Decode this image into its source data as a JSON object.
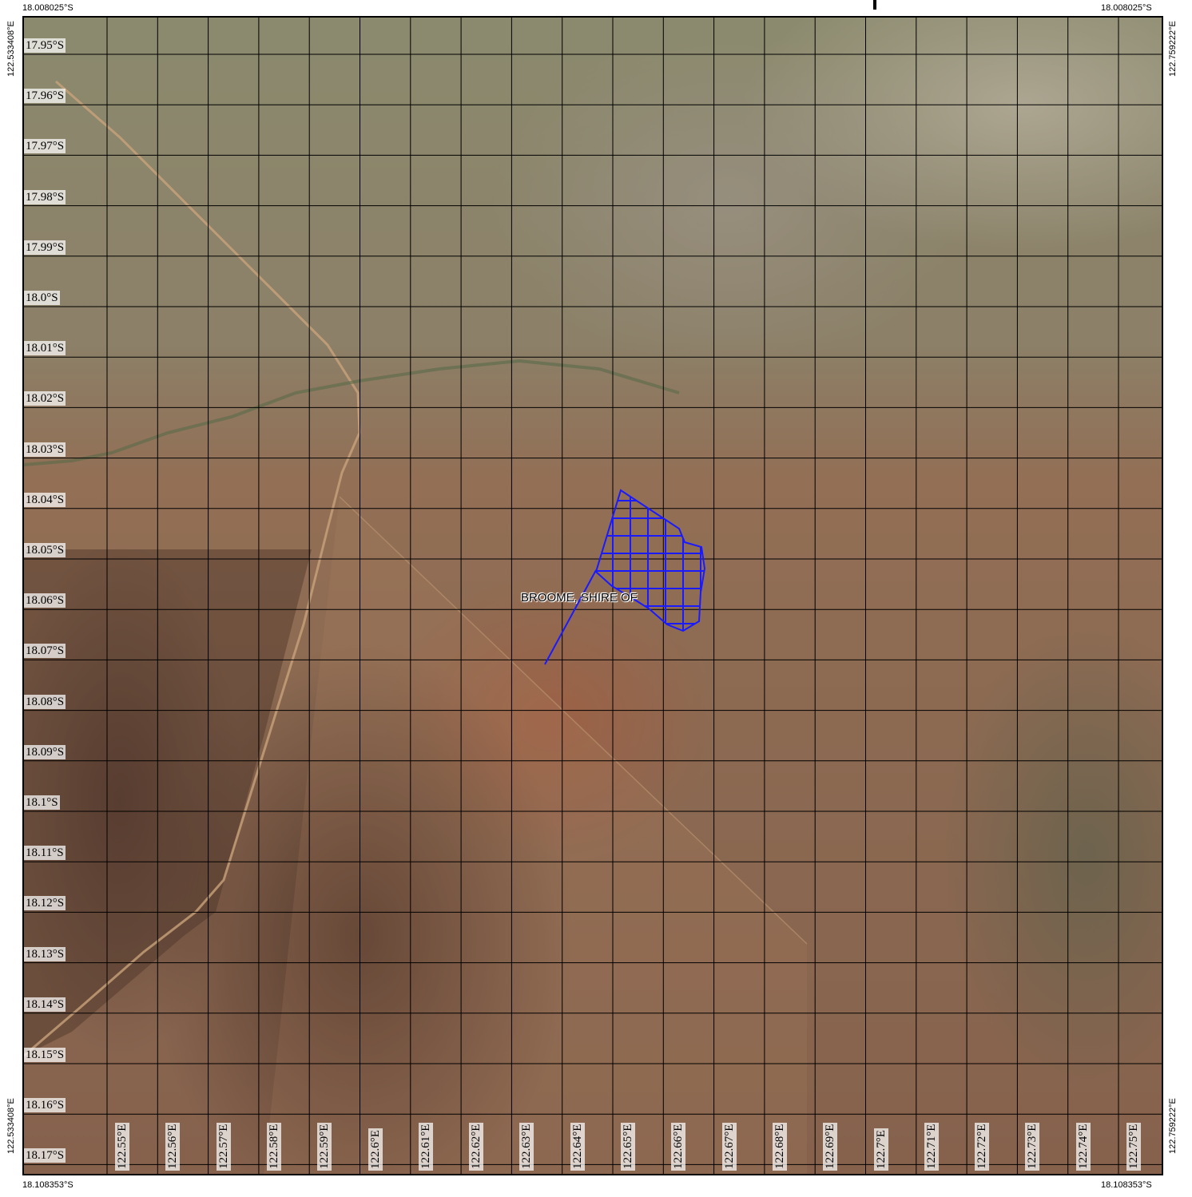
{
  "corners": {
    "top_left": "18.008025°S",
    "top_right": "18.008025°S",
    "bottom_left": "18.108353°S",
    "bottom_right": "18.108353°S",
    "left_top": "122.533408°E",
    "left_bottom": "122.533408°E",
    "right_top": "122.759222°E",
    "right_bottom": "122.759222°E"
  },
  "latitude_labels": [
    "17.95°S",
    "17.96°S",
    "17.97°S",
    "17.98°S",
    "17.99°S",
    "18.0°S",
    "18.01°S",
    "18.02°S",
    "18.03°S",
    "18.04°S",
    "18.05°S",
    "18.06°S",
    "18.07°S",
    "18.08°S",
    "18.09°S",
    "18.1°S",
    "18.11°S",
    "18.12°S",
    "18.13°S",
    "18.14°S",
    "18.15°S",
    "18.16°S",
    "18.17°S"
  ],
  "longitude_labels": [
    "122.55°E",
    "122.56°E",
    "122.57°E",
    "122.58°E",
    "122.59°E",
    "122.6°E",
    "122.61°E",
    "122.62°E",
    "122.63°E",
    "122.64°E",
    "122.65°E",
    "122.66°E",
    "122.67°E",
    "122.68°E",
    "122.69°E",
    "122.7°E",
    "122.71°E",
    "122.72°E",
    "122.73°E",
    "122.74°E",
    "122.75°E"
  ],
  "place_label": "BROOME, SHIRE OF",
  "colors": {
    "grid": "#000000",
    "parcel": "#1a1aff",
    "road": "#c9a27a"
  },
  "icons": {
    "parcel": "crosshatched-parcel-polygon",
    "leader": "leader-line"
  }
}
